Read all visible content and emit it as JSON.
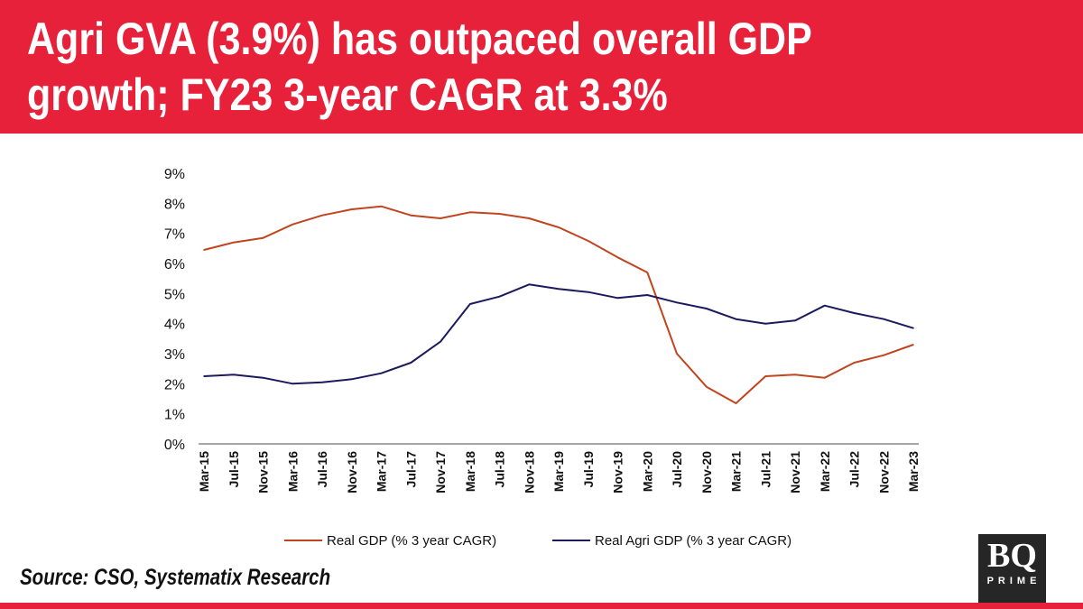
{
  "header": {
    "title_line1": "Agri GVA (3.9%) has outpaced overall GDP",
    "title_line2": "growth; FY23 3-year CAGR at 3.3%",
    "background_color": "#e8213a"
  },
  "source": "Source: CSO, Systematix Research",
  "logo": {
    "text": "BQ",
    "subtext": "PRIME"
  },
  "chart_data": {
    "type": "line",
    "title": "",
    "xlabel": "",
    "ylabel": "",
    "ylim": [
      0,
      9
    ],
    "yticks": [
      "0%",
      "1%",
      "2%",
      "3%",
      "4%",
      "5%",
      "6%",
      "7%",
      "8%",
      "9%"
    ],
    "grid": false,
    "legend_position": "bottom",
    "categories": [
      "Mar-15",
      "Jul-15",
      "Nov-15",
      "Mar-16",
      "Jul-16",
      "Nov-16",
      "Mar-17",
      "Jul-17",
      "Nov-17",
      "Mar-18",
      "Jul-18",
      "Nov-18",
      "Mar-19",
      "Jul-19",
      "Nov-19",
      "Mar-20",
      "Jul-20",
      "Nov-20",
      "Mar-21",
      "Jul-21",
      "Nov-21",
      "Mar-22",
      "Jul-22",
      "Nov-22",
      "Mar-23"
    ],
    "series": [
      {
        "name": "Real GDP (% 3 year CAGR)",
        "color": "#c0451f",
        "values": [
          6.45,
          6.7,
          6.85,
          7.3,
          7.6,
          7.8,
          7.9,
          7.6,
          7.5,
          7.7,
          7.65,
          7.5,
          7.2,
          6.75,
          6.2,
          5.7,
          3.0,
          1.9,
          1.35,
          2.25,
          2.3,
          2.2,
          2.7,
          2.95,
          3.3
        ]
      },
      {
        "name": "Real Agri GDP (% 3 year CAGR)",
        "color": "#1c1a5e",
        "values": [
          2.25,
          2.3,
          2.2,
          2.0,
          2.05,
          2.15,
          2.35,
          2.7,
          3.4,
          4.65,
          4.9,
          5.3,
          5.15,
          5.05,
          4.85,
          4.95,
          4.7,
          4.5,
          4.15,
          4.0,
          4.1,
          4.6,
          4.35,
          4.15,
          3.85
        ]
      }
    ]
  }
}
